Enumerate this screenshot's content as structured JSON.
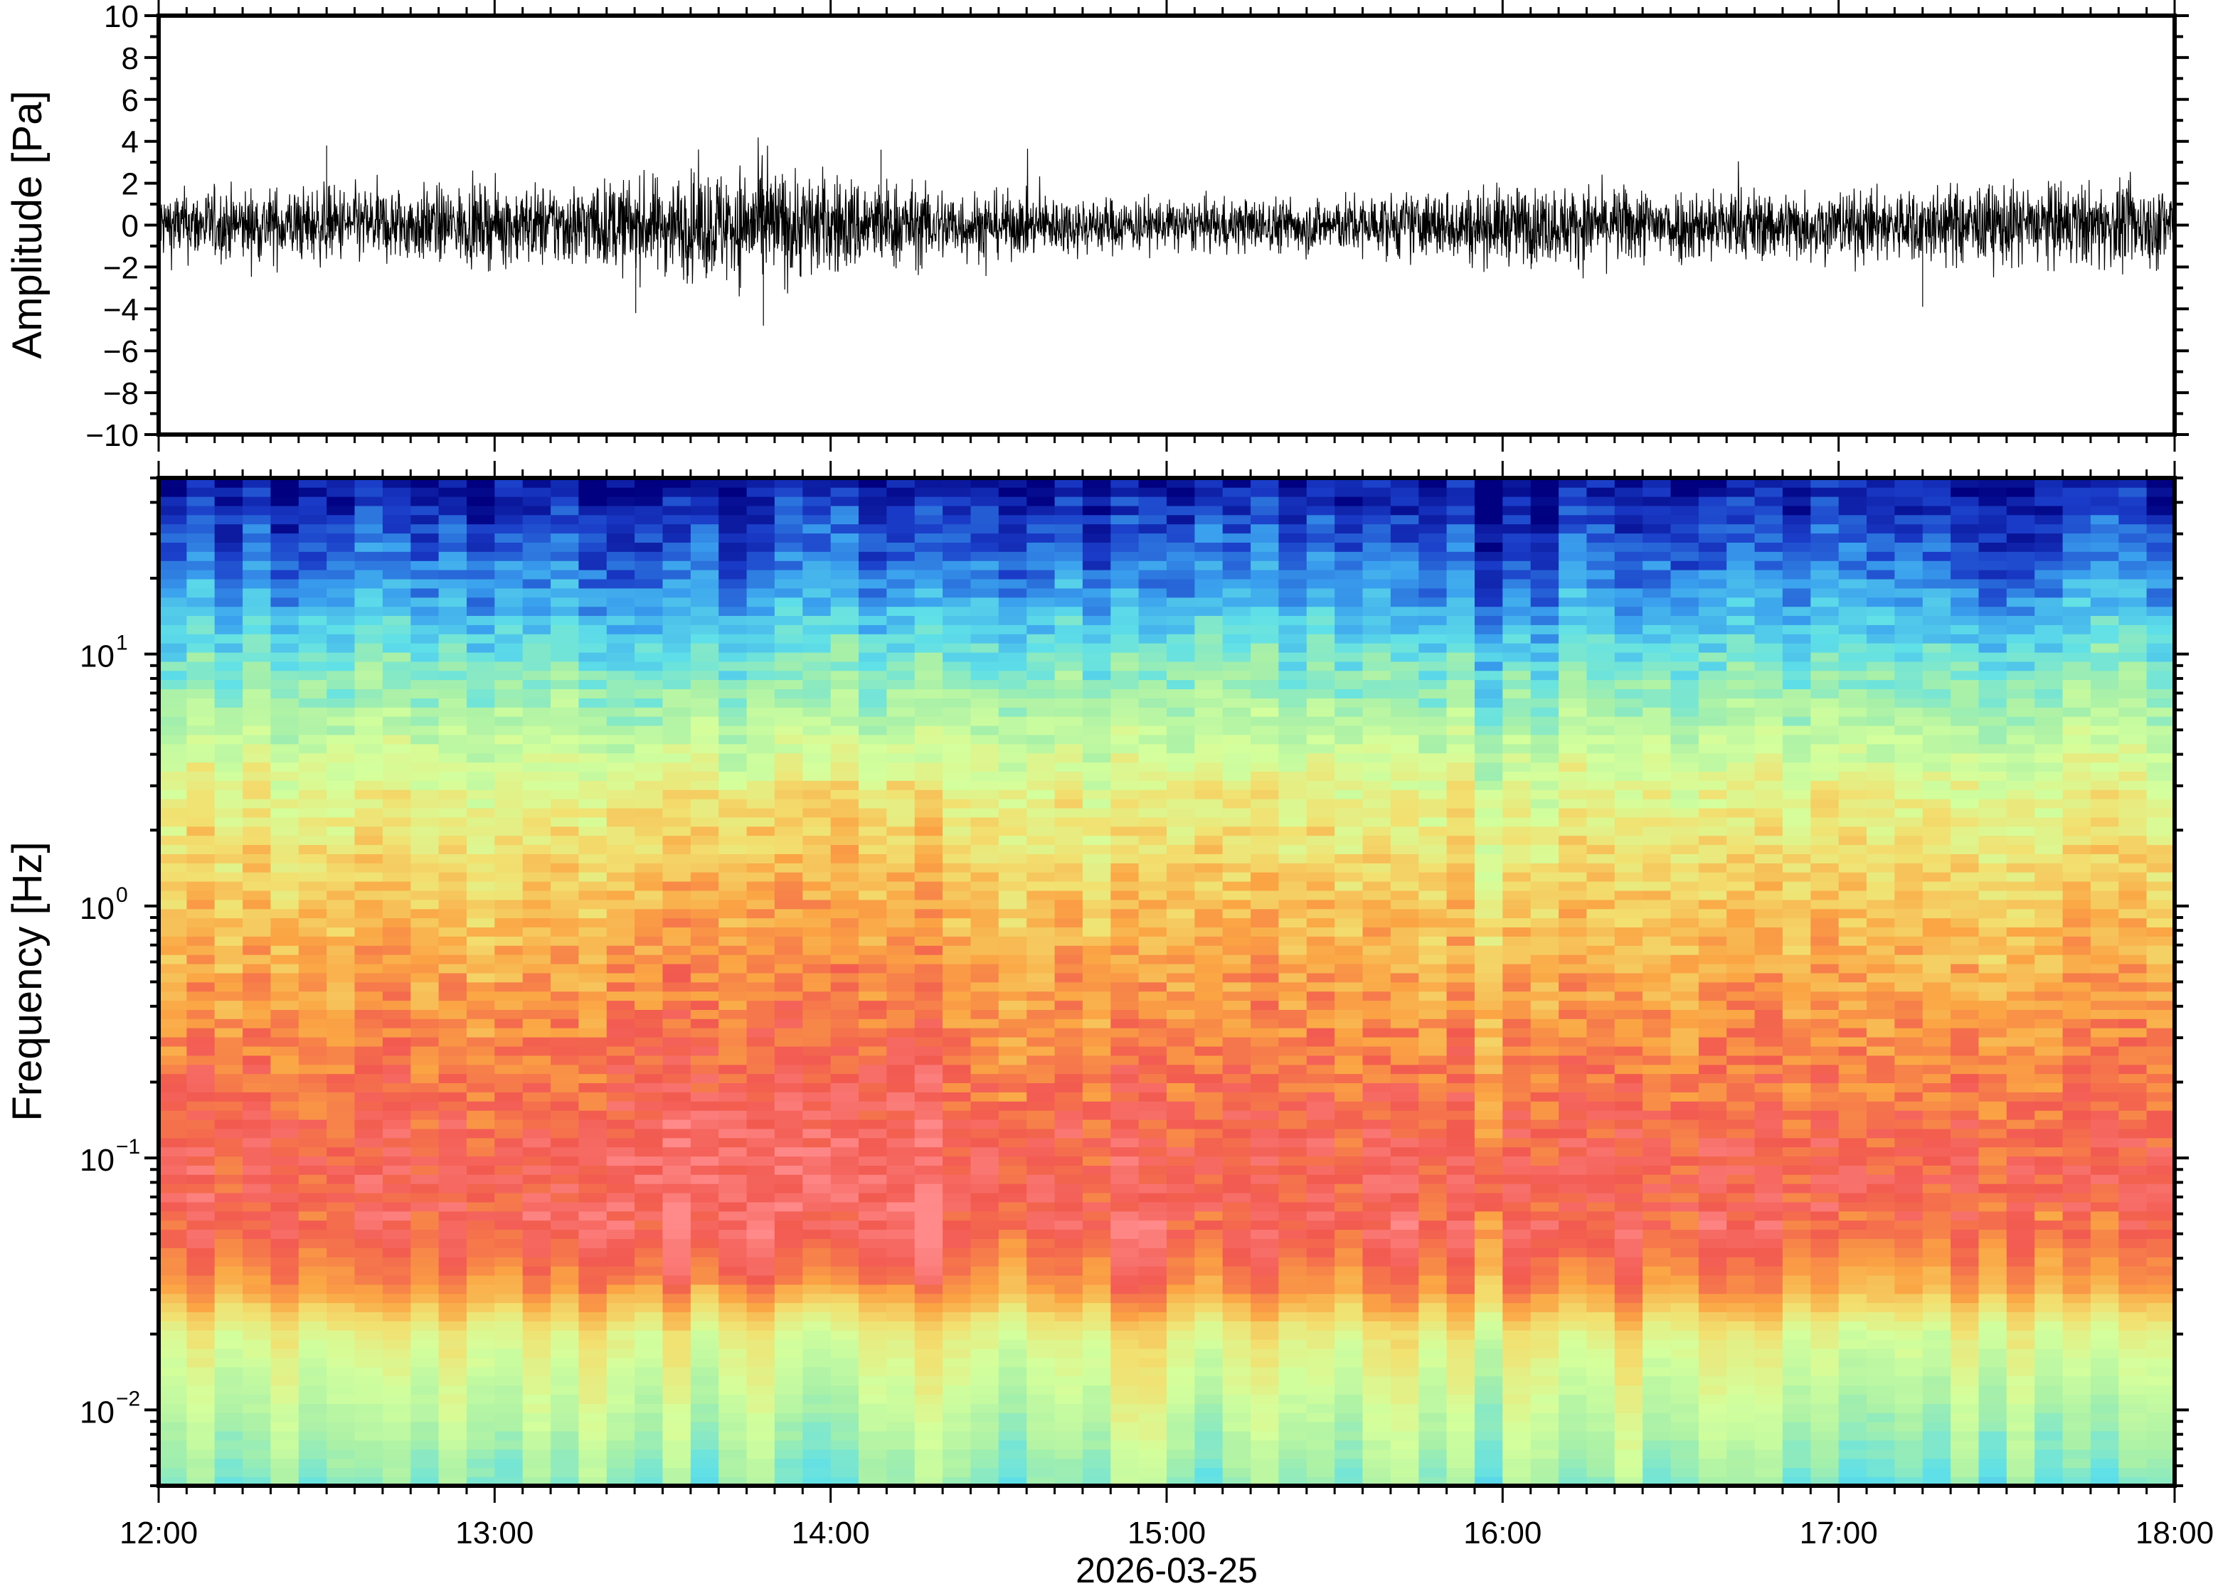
{
  "chart_data": [
    {
      "type": "line",
      "name": "waveform",
      "ylabel": "Amplitude [Pa]",
      "ylim": [
        -10,
        10
      ],
      "yticks": [
        "10",
        "8",
        "6",
        "4",
        "2",
        "0",
        "−2",
        "−4",
        "−6",
        "−8",
        "−10"
      ],
      "ytick_values": [
        10,
        8,
        6,
        4,
        2,
        0,
        -2,
        -4,
        -6,
        -8,
        -10
      ],
      "xlim_hours": [
        12,
        18
      ],
      "envelope_hours": [
        12,
        12.5,
        13,
        13.5,
        13.75,
        14,
        14.25,
        14.5,
        15,
        15.5,
        16,
        16.5,
        17,
        17.5,
        18
      ],
      "envelope_pa": [
        1.1,
        1.2,
        1.2,
        1.5,
        1.9,
        1.6,
        1.3,
        1.0,
        0.8,
        0.9,
        1.2,
        1.2,
        1.1,
        1.3,
        1.3
      ],
      "peaks": [
        {
          "t": 12.5,
          "v": 3.8
        },
        {
          "t": 13.8,
          "v": -4.8
        },
        {
          "t": 14.15,
          "v": 3.6
        },
        {
          "t": 13.42,
          "v": -4.2
        },
        {
          "t": 17.25,
          "v": -3.9
        }
      ]
    },
    {
      "type": "heatmap",
      "name": "spectrogram",
      "ylabel": "Frequency [Hz]",
      "yscale": "log",
      "ylim_hz": [
        0.005,
        50
      ],
      "ytick_labels": [
        {
          "base": "10",
          "exp": "1",
          "value": 10
        },
        {
          "base": "10",
          "exp": "0",
          "value": 1
        },
        {
          "base": "10",
          "exp": "−1",
          "value": 0.1
        },
        {
          "base": "10",
          "exp": "−2",
          "value": 0.01
        }
      ],
      "xtick_labels": [
        "12:00",
        "13:00",
        "14:00",
        "15:00",
        "16:00",
        "17:00",
        "18:00"
      ],
      "xlabel": "2026-03-25",
      "time_columns": 72,
      "relative_power_profile": {
        "freq_hz": [
          50,
          20,
          10,
          5,
          3,
          1,
          0.3,
          0.1,
          0.05,
          0.03,
          0.02,
          0.01,
          0.005
        ],
        "level": [
          0.04,
          0.2,
          0.36,
          0.5,
          0.6,
          0.72,
          0.82,
          0.9,
          0.9,
          0.8,
          0.62,
          0.52,
          0.42
        ]
      },
      "colormap": [
        "#000080",
        "#1a3cc8",
        "#3aa0ee",
        "#5fe0e8",
        "#a8f0a8",
        "#d4ff9c",
        "#f2e070",
        "#fba544",
        "#f25a50",
        "#ff8a8a"
      ]
    }
  ]
}
